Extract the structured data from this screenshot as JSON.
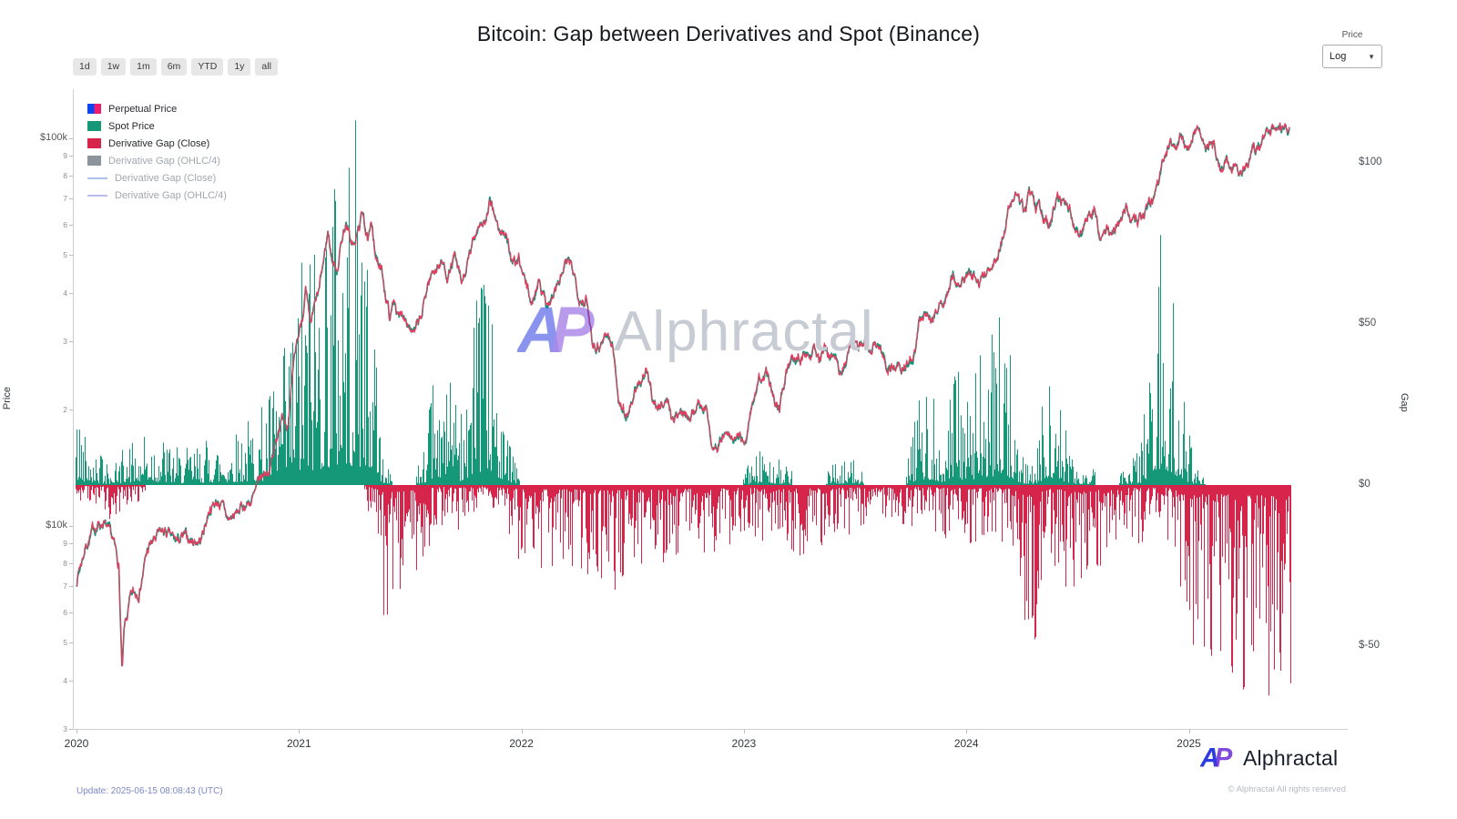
{
  "title": "Bitcoin: Gap between Derivatives and Spot (Binance)",
  "toolbar": {
    "ranges": [
      "1d",
      "1w",
      "1m",
      "6m",
      "YTD",
      "1y",
      "all"
    ]
  },
  "price_scale_control": {
    "label": "Price",
    "value": "Log"
  },
  "legend": [
    {
      "label": "Perpetual Price",
      "shape": "square",
      "colors": [
        "#0a46f0",
        "#f01a6e"
      ],
      "muted": false
    },
    {
      "label": "Spot Price",
      "shape": "square",
      "colors": [
        "#149878"
      ],
      "muted": false
    },
    {
      "label": "Derivative Gap (Close)",
      "shape": "square",
      "colors": [
        "#d7244b"
      ],
      "muted": false
    },
    {
      "label": "Derivative Gap (OHLC/4)",
      "shape": "square",
      "colors": [
        "#8e949c"
      ],
      "muted": true
    },
    {
      "label": "Derivative Gap (Close)",
      "shape": "line",
      "colors": [
        "#a9c3ea"
      ],
      "muted": true
    },
    {
      "label": "Derivative Gap (OHLC/4)",
      "shape": "line",
      "colors": [
        "#b9bce8"
      ],
      "muted": true
    }
  ],
  "axes": {
    "left": {
      "title": "Price",
      "scale": "log",
      "ticks": [
        {
          "label": "$100k",
          "value": 100000,
          "major": true
        },
        {
          "label": "9",
          "value": 90000,
          "major": false
        },
        {
          "label": "8",
          "value": 80000,
          "major": false
        },
        {
          "label": "7",
          "value": 70000,
          "major": false
        },
        {
          "label": "6",
          "value": 60000,
          "major": false
        },
        {
          "label": "5",
          "value": 50000,
          "major": false
        },
        {
          "label": "4",
          "value": 40000,
          "major": false
        },
        {
          "label": "3",
          "value": 30000,
          "major": false
        },
        {
          "label": "2",
          "value": 20000,
          "major": false
        },
        {
          "label": "$10k",
          "value": 10000,
          "major": true
        },
        {
          "label": "9",
          "value": 9000,
          "major": false
        },
        {
          "label": "8",
          "value": 8000,
          "major": false
        },
        {
          "label": "7",
          "value": 7000,
          "major": false
        },
        {
          "label": "6",
          "value": 6000,
          "major": false
        },
        {
          "label": "5",
          "value": 5000,
          "major": false
        },
        {
          "label": "4",
          "value": 4000,
          "major": false
        },
        {
          "label": "3",
          "value": 3000,
          "major": false
        }
      ]
    },
    "right": {
      "title": "Gap",
      "ticks": [
        {
          "label": "$100",
          "value": 100
        },
        {
          "label": "$50",
          "value": 50
        },
        {
          "label": "$0",
          "value": 0
        },
        {
          "label": "$-50",
          "value": -50
        }
      ]
    },
    "x": {
      "ticks": [
        {
          "label": "2020",
          "value": 2020
        },
        {
          "label": "2021",
          "value": 2021
        },
        {
          "label": "2022",
          "value": 2022
        },
        {
          "label": "2023",
          "value": 2023
        },
        {
          "label": "2024",
          "value": 2024
        },
        {
          "label": "2025",
          "value": 2025
        }
      ]
    }
  },
  "watermark": {
    "text": "Alphractal"
  },
  "footer": {
    "update": "Update: 2025-06-15 08:08:43 (UTC)",
    "brand": "Alphractal",
    "copyright": "© Alphractal All rights reserved"
  },
  "chart_data": {
    "type": "mixed",
    "title": "Bitcoin: Gap between Derivatives and Spot (Binance)",
    "layout": {
      "grid": false,
      "legend_position": "top-left",
      "x_range": [
        2020.0,
        2025.46
      ],
      "price_axis_range_log": [
        3000,
        112000
      ],
      "gap_axis_range": [
        -75,
        125
      ]
    },
    "colors": {
      "spot": "#0f9479",
      "perpetual": "#e73c5f",
      "gap_positive": "#149878",
      "gap_negative": "#d7244b",
      "axis_line": "#cfcfcf"
    },
    "series": [
      {
        "name": "Perpetual Price",
        "type": "line",
        "axis": "left"
      },
      {
        "name": "Spot Price",
        "type": "line",
        "axis": "left"
      },
      {
        "name": "Derivative Gap (Close)",
        "type": "bar",
        "axis": "right"
      }
    ],
    "price_anchors": [
      [
        2020.0,
        7200
      ],
      [
        2020.04,
        8900
      ],
      [
        2020.08,
        9800
      ],
      [
        2020.12,
        10300
      ],
      [
        2020.16,
        9100
      ],
      [
        2020.19,
        7900
      ],
      [
        2020.205,
        4100
      ],
      [
        2020.215,
        5300
      ],
      [
        2020.24,
        6300
      ],
      [
        2020.28,
        6850
      ],
      [
        2020.32,
        8700
      ],
      [
        2020.36,
        9300
      ],
      [
        2020.4,
        9600
      ],
      [
        2020.44,
        9000
      ],
      [
        2020.48,
        9250
      ],
      [
        2020.52,
        9150
      ],
      [
        2020.56,
        9250
      ],
      [
        2020.6,
        11200
      ],
      [
        2020.64,
        11700
      ],
      [
        2020.68,
        10300
      ],
      [
        2020.72,
        10700
      ],
      [
        2020.76,
        11400
      ],
      [
        2020.8,
        11900
      ],
      [
        2020.83,
        13100
      ],
      [
        2020.86,
        13900
      ],
      [
        2020.89,
        15600
      ],
      [
        2020.91,
        18300
      ],
      [
        2020.93,
        19200
      ],
      [
        2020.95,
        18700
      ],
      [
        2020.97,
        23400
      ],
      [
        2020.99,
        28900
      ],
      [
        2021.01,
        33500
      ],
      [
        2021.03,
        40500
      ],
      [
        2021.05,
        31800
      ],
      [
        2021.07,
        36000
      ],
      [
        2021.09,
        39500
      ],
      [
        2021.11,
        47500
      ],
      [
        2021.13,
        57400
      ],
      [
        2021.15,
        48500
      ],
      [
        2021.17,
        45800
      ],
      [
        2021.19,
        54200
      ],
      [
        2021.21,
        61200
      ],
      [
        2021.23,
        54500
      ],
      [
        2021.25,
        52300
      ],
      [
        2021.27,
        58900
      ],
      [
        2021.29,
        64600
      ],
      [
        2021.31,
        53800
      ],
      [
        2021.33,
        58200
      ],
      [
        2021.35,
        49100
      ],
      [
        2021.38,
        42800
      ],
      [
        2021.41,
        34300
      ],
      [
        2021.43,
        38700
      ],
      [
        2021.45,
        33900
      ],
      [
        2021.47,
        35600
      ],
      [
        2021.49,
        34700
      ],
      [
        2021.52,
        31300
      ],
      [
        2021.55,
        33900
      ],
      [
        2021.58,
        42200
      ],
      [
        2021.61,
        46400
      ],
      [
        2021.64,
        47900
      ],
      [
        2021.67,
        44700
      ],
      [
        2021.7,
        48900
      ],
      [
        2021.73,
        41100
      ],
      [
        2021.76,
        47300
      ],
      [
        2021.79,
        54900
      ],
      [
        2021.81,
        61600
      ],
      [
        2021.84,
        61300
      ],
      [
        2021.86,
        66900
      ],
      [
        2021.88,
        64300
      ],
      [
        2021.9,
        56500
      ],
      [
        2021.93,
        57400
      ],
      [
        2021.96,
        46900
      ],
      [
        2021.99,
        47200
      ],
      [
        2022.02,
        41600
      ],
      [
        2022.05,
        36900
      ],
      [
        2022.08,
        44400
      ],
      [
        2022.11,
        37800
      ],
      [
        2022.14,
        39300
      ],
      [
        2022.17,
        42400
      ],
      [
        2022.2,
        47200
      ],
      [
        2022.23,
        45600
      ],
      [
        2022.26,
        39800
      ],
      [
        2022.29,
        38500
      ],
      [
        2022.32,
        30200
      ],
      [
        2022.35,
        29600
      ],
      [
        2022.38,
        31600
      ],
      [
        2022.41,
        29100
      ],
      [
        2022.44,
        20900
      ],
      [
        2022.47,
        19100
      ],
      [
        2022.5,
        21700
      ],
      [
        2022.53,
        23200
      ],
      [
        2022.56,
        24300
      ],
      [
        2022.59,
        21600
      ],
      [
        2022.62,
        20000
      ],
      [
        2022.65,
        21600
      ],
      [
        2022.68,
        18900
      ],
      [
        2022.71,
        19600
      ],
      [
        2022.74,
        19500
      ],
      [
        2022.77,
        20300
      ],
      [
        2022.8,
        20500
      ],
      [
        2022.83,
        20200
      ],
      [
        2022.86,
        15900
      ],
      [
        2022.89,
        16700
      ],
      [
        2022.92,
        17200
      ],
      [
        2022.95,
        16500
      ],
      [
        2022.98,
        16600
      ],
      [
        2023.01,
        16900
      ],
      [
        2023.04,
        21200
      ],
      [
        2023.07,
        23100
      ],
      [
        2023.1,
        24600
      ],
      [
        2023.13,
        22100
      ],
      [
        2023.16,
        20300
      ],
      [
        2023.19,
        25000
      ],
      [
        2023.22,
        28000
      ],
      [
        2023.25,
        27600
      ],
      [
        2023.28,
        28400
      ],
      [
        2023.31,
        29900
      ],
      [
        2023.34,
        27000
      ],
      [
        2023.37,
        27600
      ],
      [
        2023.4,
        26800
      ],
      [
        2023.43,
        25600
      ],
      [
        2023.46,
        26500
      ],
      [
        2023.49,
        30500
      ],
      [
        2023.52,
        30300
      ],
      [
        2023.55,
        29900
      ],
      [
        2023.58,
        29200
      ],
      [
        2023.61,
        29300
      ],
      [
        2023.64,
        26000
      ],
      [
        2023.67,
        26100
      ],
      [
        2023.7,
        25900
      ],
      [
        2023.73,
        26600
      ],
      [
        2023.76,
        27600
      ],
      [
        2023.79,
        33900
      ],
      [
        2023.82,
        34500
      ],
      [
        2023.85,
        34900
      ],
      [
        2023.88,
        37200
      ],
      [
        2023.91,
        37700
      ],
      [
        2023.94,
        43800
      ],
      [
        2023.97,
        42200
      ],
      [
        2024.0,
        44100
      ],
      [
        2024.03,
        42800
      ],
      [
        2024.06,
        43000
      ],
      [
        2024.09,
        43100
      ],
      [
        2024.12,
        48200
      ],
      [
        2024.15,
        52100
      ],
      [
        2024.18,
        61900
      ],
      [
        2024.21,
        68300
      ],
      [
        2024.235,
        73000
      ],
      [
        2024.26,
        63700
      ],
      [
        2024.285,
        70600
      ],
      [
        2024.31,
        66000
      ],
      [
        2024.34,
        63800
      ],
      [
        2024.37,
        61000
      ],
      [
        2024.4,
        67300
      ],
      [
        2024.43,
        71000
      ],
      [
        2024.46,
        66000
      ],
      [
        2024.49,
        60800
      ],
      [
        2024.52,
        57100
      ],
      [
        2024.55,
        66600
      ],
      [
        2024.58,
        64500
      ],
      [
        2024.6,
        54200
      ],
      [
        2024.63,
        59300
      ],
      [
        2024.66,
        58100
      ],
      [
        2024.69,
        63100
      ],
      [
        2024.72,
        65700
      ],
      [
        2024.75,
        60700
      ],
      [
        2024.78,
        62200
      ],
      [
        2024.81,
        67100
      ],
      [
        2024.835,
        69300
      ],
      [
        2024.86,
        75500
      ],
      [
        2024.88,
        88100
      ],
      [
        2024.9,
        90400
      ],
      [
        2024.92,
        98000
      ],
      [
        2024.94,
        95700
      ],
      [
        2024.96,
        106000
      ],
      [
        2024.98,
        97400
      ],
      [
        2025.0,
        93400
      ],
      [
        2025.02,
        101500
      ],
      [
        2025.045,
        104800
      ],
      [
        2025.07,
        101000
      ],
      [
        2025.09,
        97700
      ],
      [
        2025.11,
        96500
      ],
      [
        2025.13,
        84400
      ],
      [
        2025.15,
        82000
      ],
      [
        2025.17,
        86800
      ],
      [
        2025.19,
        84300
      ],
      [
        2025.21,
        88000
      ],
      [
        2025.23,
        82400
      ],
      [
        2025.25,
        84500
      ],
      [
        2025.27,
        85100
      ],
      [
        2025.29,
        93800
      ],
      [
        2025.31,
        94300
      ],
      [
        2025.33,
        96900
      ],
      [
        2025.35,
        103700
      ],
      [
        2025.37,
        104000
      ],
      [
        2025.39,
        103400
      ],
      [
        2025.41,
        105400
      ],
      [
        2025.43,
        104900
      ],
      [
        2025.455,
        106800
      ]
    ],
    "gap_envelope_note": "Columns: [time, max positive gap $, max negative gap $] describing the envelope of the dense Derivative Gap (Close) bars read off the right axis",
    "gap_envelope": [
      [
        2020.0,
        24,
        6
      ],
      [
        2020.06,
        20,
        7
      ],
      [
        2020.12,
        8,
        9
      ],
      [
        2020.17,
        6,
        12
      ],
      [
        2020.22,
        14,
        8
      ],
      [
        2020.28,
        18,
        5
      ],
      [
        2020.34,
        20,
        4
      ],
      [
        2020.4,
        15,
        3
      ],
      [
        2020.47,
        11,
        3
      ],
      [
        2020.54,
        13,
        4
      ],
      [
        2020.6,
        16,
        4
      ],
      [
        2020.66,
        14,
        4
      ],
      [
        2020.72,
        18,
        4
      ],
      [
        2020.78,
        22,
        3
      ],
      [
        2020.84,
        26,
        2
      ],
      [
        2020.9,
        36,
        2
      ],
      [
        2020.95,
        48,
        2
      ],
      [
        2021.0,
        72,
        2
      ],
      [
        2021.06,
        88,
        2
      ],
      [
        2021.12,
        105,
        2
      ],
      [
        2021.18,
        116,
        2
      ],
      [
        2021.24,
        118,
        3
      ],
      [
        2021.29,
        108,
        4
      ],
      [
        2021.33,
        60,
        14
      ],
      [
        2021.37,
        12,
        40
      ],
      [
        2021.42,
        4,
        44
      ],
      [
        2021.47,
        2,
        38
      ],
      [
        2021.52,
        3,
        32
      ],
      [
        2021.57,
        18,
        22
      ],
      [
        2021.62,
        40,
        14
      ],
      [
        2021.67,
        34,
        12
      ],
      [
        2021.72,
        22,
        18
      ],
      [
        2021.77,
        55,
        10
      ],
      [
        2021.82,
        64,
        8
      ],
      [
        2021.87,
        62,
        9
      ],
      [
        2021.91,
        38,
        14
      ],
      [
        2021.95,
        12,
        22
      ],
      [
        2022.0,
        3,
        25
      ],
      [
        2022.08,
        2,
        26
      ],
      [
        2022.16,
        2,
        25
      ],
      [
        2022.24,
        2,
        27
      ],
      [
        2022.32,
        1,
        30
      ],
      [
        2022.4,
        1,
        34
      ],
      [
        2022.48,
        1,
        30
      ],
      [
        2022.56,
        1,
        27
      ],
      [
        2022.64,
        1,
        25
      ],
      [
        2022.72,
        1,
        23
      ],
      [
        2022.8,
        1,
        22
      ],
      [
        2022.88,
        1,
        21
      ],
      [
        2022.96,
        1,
        19
      ],
      [
        2023.04,
        9,
        17
      ],
      [
        2023.1,
        12,
        18
      ],
      [
        2023.16,
        8,
        20
      ],
      [
        2023.24,
        3,
        22
      ],
      [
        2023.32,
        1,
        21
      ],
      [
        2023.4,
        7,
        18
      ],
      [
        2023.48,
        9,
        16
      ],
      [
        2023.56,
        3,
        14
      ],
      [
        2023.64,
        1,
        15
      ],
      [
        2023.72,
        2,
        14
      ],
      [
        2023.78,
        30,
        12
      ],
      [
        2023.84,
        33,
        14
      ],
      [
        2023.89,
        16,
        16
      ],
      [
        2023.95,
        40,
        18
      ],
      [
        2024.01,
        26,
        20
      ],
      [
        2024.07,
        44,
        18
      ],
      [
        2024.13,
        56,
        16
      ],
      [
        2024.19,
        44,
        22
      ],
      [
        2024.25,
        10,
        40
      ],
      [
        2024.31,
        6,
        56
      ],
      [
        2024.37,
        48,
        24
      ],
      [
        2024.43,
        24,
        28
      ],
      [
        2024.49,
        5,
        44
      ],
      [
        2024.55,
        6,
        40
      ],
      [
        2024.61,
        3,
        26
      ],
      [
        2024.67,
        4,
        20
      ],
      [
        2024.73,
        6,
        18
      ],
      [
        2024.79,
        14,
        20
      ],
      [
        2024.84,
        84,
        10
      ],
      [
        2024.88,
        88,
        12
      ],
      [
        2024.92,
        66,
        22
      ],
      [
        2024.96,
        34,
        38
      ],
      [
        2025.02,
        8,
        52
      ],
      [
        2025.08,
        4,
        60
      ],
      [
        2025.14,
        3,
        56
      ],
      [
        2025.2,
        2,
        62
      ],
      [
        2025.26,
        2,
        66
      ],
      [
        2025.32,
        3,
        64
      ],
      [
        2025.38,
        2,
        68
      ],
      [
        2025.44,
        3,
        66
      ]
    ]
  }
}
